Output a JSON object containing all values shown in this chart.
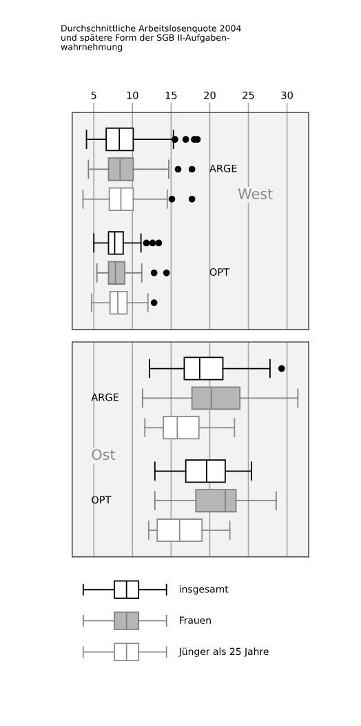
{
  "chart_data": [
    {
      "type": "box",
      "orientation": "horizontal",
      "title": "Durchschnittliche Arbeitslosenquote 2004\nund spätere Form der SGB II-Aufgaben-\nwahrnehmung",
      "categories": [
        "ARGE",
        "OPT"
      ],
      "annotations": [
        "West"
      ],
      "xlim": [
        2.2,
        32.8
      ],
      "xticks": [
        5,
        10,
        15,
        20,
        25,
        30
      ],
      "grid": "x",
      "tick_labels": "x",
      "legend": "bottom",
      "series": [
        {
          "name": "insgesamt",
          "color": "#000000",
          "colors": [
            "#ffffff",
            "#ffffff"
          ],
          "boxes": [
            {
              "low": 4.05,
              "q1": 6.6,
              "median": 8.3,
              "q3": 10.1,
              "high": 15.3,
              "outliers": [
                15.5,
                16.9,
                18.0,
                18.4
              ]
            },
            {
              "low": 5.0,
              "q1": 6.9,
              "median": 7.7,
              "q3": 8.8,
              "high": 11.1,
              "outliers": [
                11.8,
                12.6,
                13.4
              ]
            }
          ]
        },
        {
          "name": "Frauen",
          "color": "#7f7f7f",
          "colors": [
            "#b5b6b8",
            "#b5b6b8"
          ],
          "boxes": [
            {
              "low": 4.3,
              "q1": 6.9,
              "median": 8.4,
              "q3": 10.1,
              "high": 14.7,
              "outliers": [
                15.9,
                17.7
              ]
            },
            {
              "low": 5.4,
              "q1": 6.9,
              "median": 7.8,
              "q3": 9.0,
              "high": 11.2,
              "outliers": [
                12.8,
                14.4
              ]
            }
          ]
        },
        {
          "name": "Jünger als 25 Jahre",
          "color": "#8c8c8c",
          "colors": [
            "#ffffff",
            "#ffffff"
          ],
          "boxes": [
            {
              "low": 3.6,
              "q1": 7.0,
              "median": 8.5,
              "q3": 10.1,
              "high": 14.5,
              "outliers": [
                15.1,
                17.7
              ]
            },
            {
              "low": 4.7,
              "q1": 7.1,
              "median": 8.1,
              "q3": 9.3,
              "high": 12.0,
              "outliers": [
                12.8
              ]
            }
          ]
        }
      ]
    },
    {
      "type": "box",
      "orientation": "horizontal",
      "categories": [
        "ARGE",
        "OPT"
      ],
      "annotations": [
        "Ost"
      ],
      "xlim": [
        2.2,
        32.8
      ],
      "xticks": [
        5,
        10,
        15,
        20,
        25,
        30
      ],
      "grid": "x",
      "tick_labels": false,
      "series": [
        {
          "color": "#000000",
          "colors": [
            "#ffffff",
            "#ffffff"
          ],
          "boxes": [
            {
              "low": 12.2,
              "q1": 16.7,
              "median": 18.7,
              "q3": 21.7,
              "high": 27.8,
              "outliers": [
                29.3
              ]
            },
            {
              "low": 12.9,
              "q1": 16.9,
              "median": 19.6,
              "q3": 22.0,
              "high": 25.4
            }
          ]
        },
        {
          "color": "#7f7f7f",
          "colors": [
            "#b5b6b8",
            "#b5b6b8"
          ],
          "boxes": [
            {
              "low": 11.3,
              "q1": 17.7,
              "median": 20.2,
              "q3": 23.9,
              "high": 31.4
            },
            {
              "low": 12.9,
              "q1": 18.2,
              "median": 22.0,
              "q3": 23.4,
              "high": 28.6
            }
          ]
        },
        {
          "color": "#8c8c8c",
          "colors": [
            "#ffffff",
            "#ffffff"
          ],
          "boxes": [
            {
              "low": 11.6,
              "q1": 14.0,
              "median": 15.8,
              "q3": 18.6,
              "high": 23.2
            },
            {
              "low": 12.1,
              "q1": 13.2,
              "median": 16.1,
              "q3": 19.0,
              "high": 22.6
            }
          ]
        }
      ]
    }
  ]
}
